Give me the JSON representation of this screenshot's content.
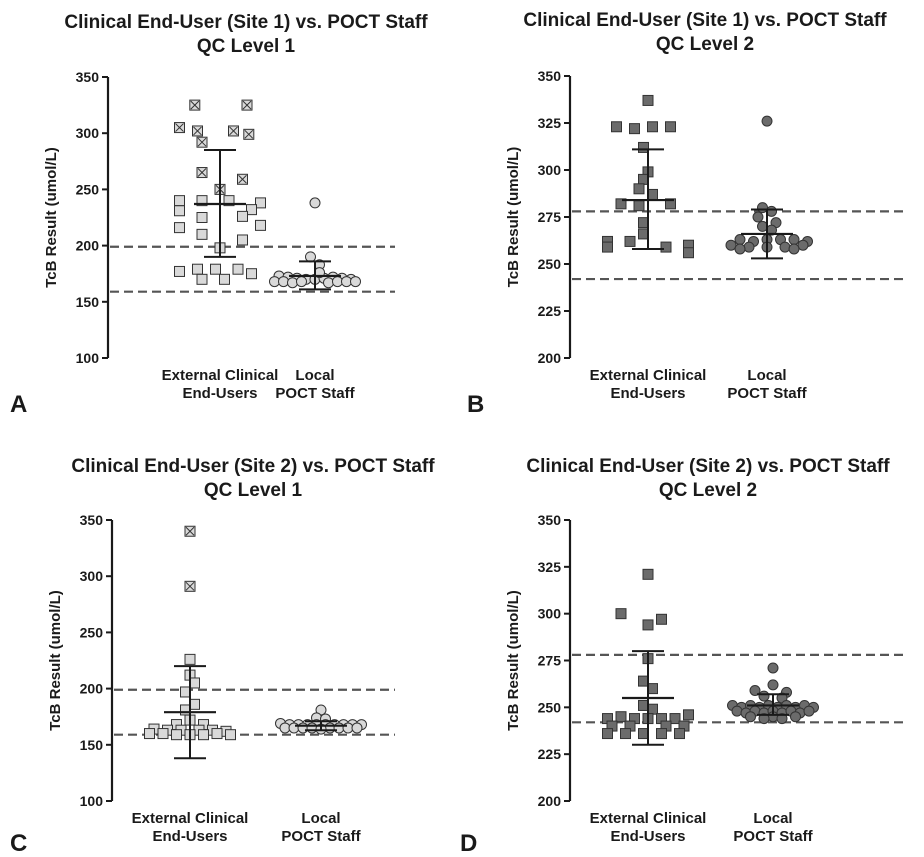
{
  "chart_data": [
    {
      "type": "scatter",
      "panel_label": "A",
      "title": "Clinical End-User (Site 1) vs. POCT Staff",
      "subtitle": "QC Level 1",
      "ylabel": "TcB Result (umol/L)",
      "ylim": [
        100,
        350
      ],
      "yticks": [
        "100",
        "150",
        "200",
        "250",
        "300",
        "350"
      ],
      "categories": [
        {
          "line1": "External Clinical",
          "line2": "End-Users"
        },
        {
          "line1": "Local",
          "line2": "POCT Staff"
        }
      ],
      "reference_lines": [
        199,
        159
      ],
      "series": [
        {
          "marker": "square",
          "fill": "#d9d9d9",
          "mean": 237,
          "sd_upper": 285,
          "sd_lower": 190,
          "points": [
            {
              "x": -0.45,
              "y": 305,
              "flag": true
            },
            {
              "x": -0.28,
              "y": 325,
              "flag": true
            },
            {
              "x": 0.3,
              "y": 325,
              "flag": true
            },
            {
              "x": -0.25,
              "y": 302,
              "flag": true
            },
            {
              "x": 0.15,
              "y": 302,
              "flag": true
            },
            {
              "x": 0.32,
              "y": 299,
              "flag": true
            },
            {
              "x": -0.2,
              "y": 292,
              "flag": true
            },
            {
              "x": -0.2,
              "y": 265,
              "flag": true
            },
            {
              "x": 0.25,
              "y": 259,
              "flag": true
            },
            {
              "x": 0.0,
              "y": 250,
              "flag": true
            },
            {
              "x": -0.45,
              "y": 240
            },
            {
              "x": -0.2,
              "y": 240
            },
            {
              "x": 0.1,
              "y": 240
            },
            {
              "x": 0.45,
              "y": 238
            },
            {
              "x": -0.45,
              "y": 231
            },
            {
              "x": 0.35,
              "y": 232
            },
            {
              "x": -0.2,
              "y": 225
            },
            {
              "x": 0.25,
              "y": 226
            },
            {
              "x": -0.45,
              "y": 216
            },
            {
              "x": 0.45,
              "y": 218
            },
            {
              "x": -0.2,
              "y": 210
            },
            {
              "x": 0.25,
              "y": 205
            },
            {
              "x": 0.0,
              "y": 198
            },
            {
              "x": -0.25,
              "y": 179
            },
            {
              "x": -0.05,
              "y": 179
            },
            {
              "x": 0.2,
              "y": 179
            },
            {
              "x": -0.45,
              "y": 177
            },
            {
              "x": -0.2,
              "y": 170
            },
            {
              "x": 0.05,
              "y": 170
            },
            {
              "x": 0.35,
              "y": 175
            }
          ]
        },
        {
          "marker": "circle",
          "fill": "#d9d9d9",
          "mean": 173,
          "sd_upper": 186,
          "sd_lower": 161,
          "points": [
            {
              "x": 0.0,
              "y": 238
            },
            {
              "x": -0.05,
              "y": 190
            },
            {
              "x": 0.05,
              "y": 183
            },
            {
              "x": -0.4,
              "y": 173
            },
            {
              "x": -0.3,
              "y": 172
            },
            {
              "x": -0.2,
              "y": 171
            },
            {
              "x": -0.1,
              "y": 170
            },
            {
              "x": 0.0,
              "y": 170
            },
            {
              "x": 0.1,
              "y": 171
            },
            {
              "x": 0.2,
              "y": 172
            },
            {
              "x": 0.3,
              "y": 171
            },
            {
              "x": 0.4,
              "y": 170
            },
            {
              "x": -0.45,
              "y": 168
            },
            {
              "x": -0.35,
              "y": 168
            },
            {
              "x": -0.25,
              "y": 167
            },
            {
              "x": -0.15,
              "y": 168
            },
            {
              "x": 0.15,
              "y": 167
            },
            {
              "x": 0.25,
              "y": 168
            },
            {
              "x": 0.35,
              "y": 168
            },
            {
              "x": 0.45,
              "y": 168
            },
            {
              "x": 0.05,
              "y": 176
            }
          ]
        }
      ]
    },
    {
      "type": "scatter",
      "panel_label": "B",
      "title": "Clinical End-User (Site 1) vs. POCT Staff",
      "subtitle": "QC Level 2",
      "ylabel": "TcB Result (umol/L)",
      "ylim": [
        200,
        350
      ],
      "yticks": [
        "200",
        "225",
        "250",
        "275",
        "300",
        "325",
        "350"
      ],
      "categories": [
        {
          "line1": "External Clinical",
          "line2": "End-Users"
        },
        {
          "line1": "Local",
          "line2": "POCT Staff"
        }
      ],
      "reference_lines": [
        278,
        242
      ],
      "series": [
        {
          "marker": "square",
          "fill": "#6b6b6b",
          "mean": 284,
          "sd_upper": 311,
          "sd_lower": 258,
          "points": [
            {
              "x": 0.0,
              "y": 337
            },
            {
              "x": -0.35,
              "y": 323
            },
            {
              "x": -0.15,
              "y": 322
            },
            {
              "x": 0.05,
              "y": 323
            },
            {
              "x": 0.25,
              "y": 323
            },
            {
              "x": -0.05,
              "y": 312
            },
            {
              "x": 0.0,
              "y": 299
            },
            {
              "x": -0.05,
              "y": 295
            },
            {
              "x": -0.1,
              "y": 290
            },
            {
              "x": 0.05,
              "y": 287
            },
            {
              "x": -0.3,
              "y": 282
            },
            {
              "x": -0.1,
              "y": 281
            },
            {
              "x": 0.25,
              "y": 282
            },
            {
              "x": -0.05,
              "y": 272
            },
            {
              "x": -0.05,
              "y": 266
            },
            {
              "x": -0.45,
              "y": 262
            },
            {
              "x": -0.2,
              "y": 262
            },
            {
              "x": -0.45,
              "y": 259
            },
            {
              "x": 0.2,
              "y": 259
            },
            {
              "x": 0.45,
              "y": 260
            },
            {
              "x": 0.45,
              "y": 256
            }
          ]
        },
        {
          "marker": "circle",
          "fill": "#6b6b6b",
          "mean": 266,
          "sd_upper": 279,
          "sd_lower": 253,
          "points": [
            {
              "x": 0.0,
              "y": 326
            },
            {
              "x": -0.05,
              "y": 280
            },
            {
              "x": 0.05,
              "y": 278
            },
            {
              "x": -0.1,
              "y": 275
            },
            {
              "x": 0.1,
              "y": 272
            },
            {
              "x": -0.05,
              "y": 270
            },
            {
              "x": 0.05,
              "y": 268
            },
            {
              "x": -0.3,
              "y": 263
            },
            {
              "x": -0.15,
              "y": 262
            },
            {
              "x": 0.0,
              "y": 263
            },
            {
              "x": 0.15,
              "y": 263
            },
            {
              "x": 0.3,
              "y": 263
            },
            {
              "x": 0.45,
              "y": 262
            },
            {
              "x": -0.4,
              "y": 260
            },
            {
              "x": -0.2,
              "y": 259
            },
            {
              "x": 0.0,
              "y": 259
            },
            {
              "x": 0.2,
              "y": 259
            },
            {
              "x": 0.4,
              "y": 260
            },
            {
              "x": -0.3,
              "y": 258
            },
            {
              "x": 0.3,
              "y": 258
            }
          ]
        }
      ]
    },
    {
      "type": "scatter",
      "panel_label": "C",
      "title": "Clinical End-User (Site 2) vs. POCT Staff",
      "subtitle": "QC Level 1",
      "ylabel": "TcB Result (umol/L)",
      "ylim": [
        100,
        350
      ],
      "yticks": [
        "100",
        "150",
        "200",
        "250",
        "300",
        "350"
      ],
      "categories": [
        {
          "line1": "External Clinical",
          "line2": "End-Users"
        },
        {
          "line1": "Local",
          "line2": "POCT Staff"
        }
      ],
      "reference_lines": [
        199,
        159
      ],
      "series": [
        {
          "marker": "square",
          "fill": "#d9d9d9",
          "mean": 179,
          "sd_upper": 220,
          "sd_lower": 138,
          "points": [
            {
              "x": 0.0,
              "y": 340,
              "flag": true
            },
            {
              "x": 0.0,
              "y": 291,
              "flag": true
            },
            {
              "x": 0.0,
              "y": 226
            },
            {
              "x": 0.0,
              "y": 212
            },
            {
              "x": 0.05,
              "y": 205
            },
            {
              "x": -0.05,
              "y": 197
            },
            {
              "x": 0.05,
              "y": 186
            },
            {
              "x": -0.05,
              "y": 181
            },
            {
              "x": 0.0,
              "y": 172
            },
            {
              "x": -0.15,
              "y": 168
            },
            {
              "x": 0.15,
              "y": 168
            },
            {
              "x": -0.4,
              "y": 164
            },
            {
              "x": -0.25,
              "y": 163
            },
            {
              "x": -0.1,
              "y": 163
            },
            {
              "x": 0.1,
              "y": 163
            },
            {
              "x": 0.25,
              "y": 163
            },
            {
              "x": 0.4,
              "y": 162
            },
            {
              "x": -0.45,
              "y": 160
            },
            {
              "x": -0.3,
              "y": 160
            },
            {
              "x": -0.15,
              "y": 159
            },
            {
              "x": 0.0,
              "y": 159
            },
            {
              "x": 0.15,
              "y": 159
            },
            {
              "x": 0.3,
              "y": 160
            },
            {
              "x": 0.45,
              "y": 159
            }
          ]
        },
        {
          "marker": "circle",
          "fill": "#d9d9d9",
          "mean": 167,
          "sd_upper": 171,
          "sd_lower": 163,
          "points": [
            {
              "x": 0.0,
              "y": 181
            },
            {
              "x": -0.05,
              "y": 174
            },
            {
              "x": 0.05,
              "y": 173
            },
            {
              "x": -0.45,
              "y": 169
            },
            {
              "x": -0.35,
              "y": 168
            },
            {
              "x": -0.25,
              "y": 168
            },
            {
              "x": -0.15,
              "y": 168
            },
            {
              "x": -0.05,
              "y": 168
            },
            {
              "x": 0.05,
              "y": 168
            },
            {
              "x": 0.15,
              "y": 168
            },
            {
              "x": 0.25,
              "y": 168
            },
            {
              "x": 0.35,
              "y": 168
            },
            {
              "x": 0.45,
              "y": 168
            },
            {
              "x": -0.4,
              "y": 165
            },
            {
              "x": -0.3,
              "y": 165
            },
            {
              "x": -0.2,
              "y": 165
            },
            {
              "x": -0.1,
              "y": 165
            },
            {
              "x": 0.1,
              "y": 165
            },
            {
              "x": 0.2,
              "y": 165
            },
            {
              "x": 0.3,
              "y": 165
            },
            {
              "x": 0.4,
              "y": 165
            },
            {
              "x": 0.0,
              "y": 164
            }
          ]
        }
      ]
    },
    {
      "type": "scatter",
      "panel_label": "D",
      "title": "Clinical End-User (Site 2) vs. POCT Staff",
      "subtitle": "QC Level 2",
      "ylabel": "TcB Result (umol/L)",
      "ylim": [
        200,
        350
      ],
      "yticks": [
        "200",
        "225",
        "250",
        "275",
        "300",
        "325",
        "350"
      ],
      "categories": [
        {
          "line1": "External Clinical",
          "line2": "End-Users"
        },
        {
          "line1": "Local",
          "line2": "POCT Staff"
        }
      ],
      "reference_lines": [
        278,
        242
      ],
      "series": [
        {
          "marker": "square",
          "fill": "#6b6b6b",
          "mean": 255,
          "sd_upper": 280,
          "sd_lower": 230,
          "points": [
            {
              "x": 0.0,
              "y": 321
            },
            {
              "x": -0.3,
              "y": 300
            },
            {
              "x": 0.15,
              "y": 297
            },
            {
              "x": 0.0,
              "y": 294
            },
            {
              "x": 0.0,
              "y": 276
            },
            {
              "x": -0.05,
              "y": 264
            },
            {
              "x": 0.05,
              "y": 260
            },
            {
              "x": -0.05,
              "y": 251
            },
            {
              "x": 0.05,
              "y": 249
            },
            {
              "x": -0.45,
              "y": 244
            },
            {
              "x": -0.3,
              "y": 245
            },
            {
              "x": -0.15,
              "y": 244
            },
            {
              "x": 0.0,
              "y": 244
            },
            {
              "x": 0.15,
              "y": 244
            },
            {
              "x": 0.3,
              "y": 244
            },
            {
              "x": 0.45,
              "y": 246
            },
            {
              "x": -0.4,
              "y": 240
            },
            {
              "x": -0.2,
              "y": 240
            },
            {
              "x": 0.2,
              "y": 240
            },
            {
              "x": 0.4,
              "y": 240
            },
            {
              "x": -0.45,
              "y": 236
            },
            {
              "x": -0.25,
              "y": 236
            },
            {
              "x": -0.05,
              "y": 236
            },
            {
              "x": 0.15,
              "y": 236
            },
            {
              "x": 0.35,
              "y": 236
            }
          ]
        },
        {
          "marker": "circle",
          "fill": "#6b6b6b",
          "mean": 251,
          "sd_upper": 257,
          "sd_lower": 246,
          "points": [
            {
              "x": 0.0,
              "y": 271
            },
            {
              "x": 0.0,
              "y": 262
            },
            {
              "x": -0.2,
              "y": 259
            },
            {
              "x": 0.15,
              "y": 258
            },
            {
              "x": -0.1,
              "y": 256
            },
            {
              "x": 0.1,
              "y": 255
            },
            {
              "x": -0.45,
              "y": 251
            },
            {
              "x": -0.35,
              "y": 250
            },
            {
              "x": -0.25,
              "y": 251
            },
            {
              "x": -0.15,
              "y": 250
            },
            {
              "x": -0.05,
              "y": 251
            },
            {
              "x": 0.05,
              "y": 250
            },
            {
              "x": 0.15,
              "y": 251
            },
            {
              "x": 0.25,
              "y": 250
            },
            {
              "x": 0.35,
              "y": 251
            },
            {
              "x": 0.45,
              "y": 250
            },
            {
              "x": -0.4,
              "y": 248
            },
            {
              "x": -0.3,
              "y": 247
            },
            {
              "x": -0.2,
              "y": 248
            },
            {
              "x": -0.1,
              "y": 247
            },
            {
              "x": 0.0,
              "y": 248
            },
            {
              "x": 0.1,
              "y": 247
            },
            {
              "x": 0.2,
              "y": 248
            },
            {
              "x": 0.3,
              "y": 247
            },
            {
              "x": 0.4,
              "y": 248
            },
            {
              "x": -0.25,
              "y": 245
            },
            {
              "x": 0.0,
              "y": 245
            },
            {
              "x": 0.25,
              "y": 245
            },
            {
              "x": -0.1,
              "y": 244
            },
            {
              "x": 0.1,
              "y": 244
            }
          ]
        }
      ]
    }
  ]
}
